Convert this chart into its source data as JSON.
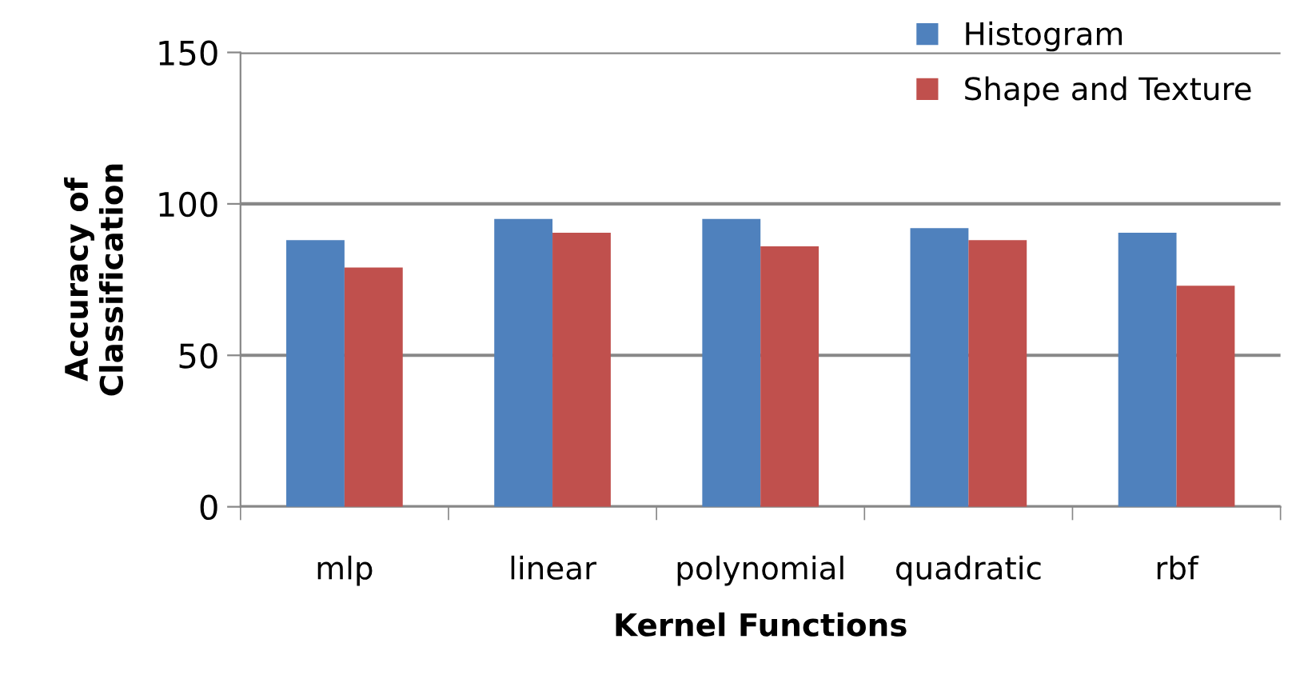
{
  "chart_data": {
    "type": "bar",
    "xlabel": "Kernel Functions",
    "ylabel": "Accuracy of\nClassification",
    "categories": [
      "mlp",
      "linear",
      "polynomial",
      "quadratic",
      "rbf"
    ],
    "series": [
      {
        "name": "Histogram",
        "color": "#4f81bd",
        "values": [
          88,
          95,
          95,
          92,
          90.5
        ]
      },
      {
        "name": "Shape and Texture",
        "color": "#c0504d",
        "values": [
          79,
          90.5,
          86,
          88,
          73
        ]
      }
    ],
    "ylim": [
      0,
      150
    ],
    "yticks": [
      0,
      50,
      100,
      150
    ],
    "grid": "y",
    "legend": "top right"
  }
}
